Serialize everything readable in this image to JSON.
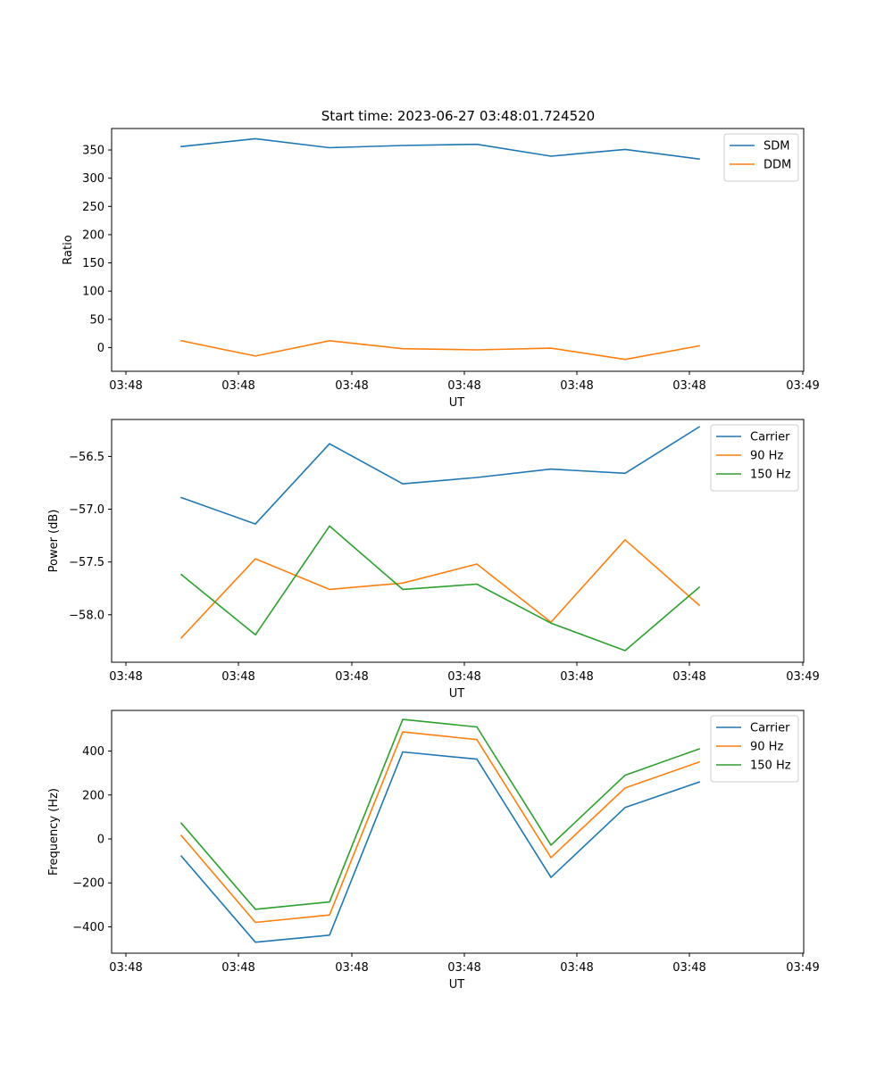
{
  "figure": {
    "title": "Start time: 2023-06-27 03:48:01.724520"
  },
  "chart_data": [
    {
      "type": "line",
      "xlabel": "UT",
      "ylabel": "Ratio",
      "x": [
        1,
        2,
        3,
        4,
        5,
        6,
        7,
        8
      ],
      "x_ticks": [
        "03:48",
        "03:48",
        "03:48",
        "03:48",
        "03:48",
        "03:48",
        "03:48"
      ],
      "x_tick_final": "03:49",
      "ylim": [
        -42,
        388
      ],
      "yticks": [
        0,
        50,
        100,
        150,
        200,
        250,
        300,
        350
      ],
      "yticks_labels": [
        "0",
        "50",
        "100",
        "150",
        "200",
        "250",
        "300",
        "350"
      ],
      "legend": "top-right",
      "series": [
        {
          "name": "SDM",
          "color": "#1f77b4",
          "values": [
            356,
            370,
            354,
            358,
            360,
            339,
            351,
            334
          ]
        },
        {
          "name": "DDM",
          "color": "#ff7f0e",
          "values": [
            12,
            -15,
            12,
            -2,
            -4,
            -1,
            -21,
            3
          ]
        }
      ]
    },
    {
      "type": "line",
      "xlabel": "UT",
      "ylabel": "Power (dB)",
      "x": [
        1,
        2,
        3,
        4,
        5,
        6,
        7,
        8
      ],
      "x_ticks": [
        "03:48",
        "03:48",
        "03:48",
        "03:48",
        "03:48",
        "03:48",
        "03:48"
      ],
      "x_tick_final": "03:49",
      "ylim": [
        -58.45,
        -56.15
      ],
      "yticks": [
        -58.0,
        -57.5,
        -57.0,
        -56.5
      ],
      "yticks_labels": [
        "−58.0",
        "−57.5",
        "−57.0",
        "−56.5"
      ],
      "legend": "top-right",
      "series": [
        {
          "name": "Carrier",
          "color": "#1f77b4",
          "values": [
            -56.89,
            -57.14,
            -56.38,
            -56.76,
            -56.7,
            -56.62,
            -56.66,
            -56.22
          ]
        },
        {
          "name": "90 Hz",
          "color": "#ff7f0e",
          "values": [
            -58.22,
            -57.47,
            -57.76,
            -57.7,
            -57.52,
            -58.07,
            -57.29,
            -57.91
          ]
        },
        {
          "name": "150 Hz",
          "color": "#2ca02c",
          "values": [
            -57.62,
            -58.19,
            -57.16,
            -57.76,
            -57.71,
            -58.08,
            -58.34,
            -57.74
          ]
        }
      ]
    },
    {
      "type": "line",
      "xlabel": "UT",
      "ylabel": "Frequency (Hz)",
      "x": [
        1,
        2,
        3,
        4,
        5,
        6,
        7,
        8
      ],
      "x_ticks": [
        "03:48",
        "03:48",
        "03:48",
        "03:48",
        "03:48",
        "03:48",
        "03:48"
      ],
      "x_tick_final": "03:49",
      "ylim": [
        -520,
        585
      ],
      "yticks": [
        -400,
        -200,
        0,
        200,
        400
      ],
      "yticks_labels": [
        "−400",
        "−200",
        "0",
        "200",
        "400"
      ],
      "legend": "top-right",
      "series": [
        {
          "name": "Carrier",
          "color": "#1f77b4",
          "values": [
            -78,
            -470,
            -438,
            396,
            363,
            -175,
            143,
            259
          ]
        },
        {
          "name": "90 Hz",
          "color": "#ff7f0e",
          "values": [
            16,
            -380,
            -346,
            487,
            452,
            -85,
            232,
            350
          ]
        },
        {
          "name": "150 Hz",
          "color": "#2ca02c",
          "values": [
            72,
            -320,
            -287,
            544,
            510,
            -28,
            290,
            410
          ]
        }
      ]
    }
  ]
}
